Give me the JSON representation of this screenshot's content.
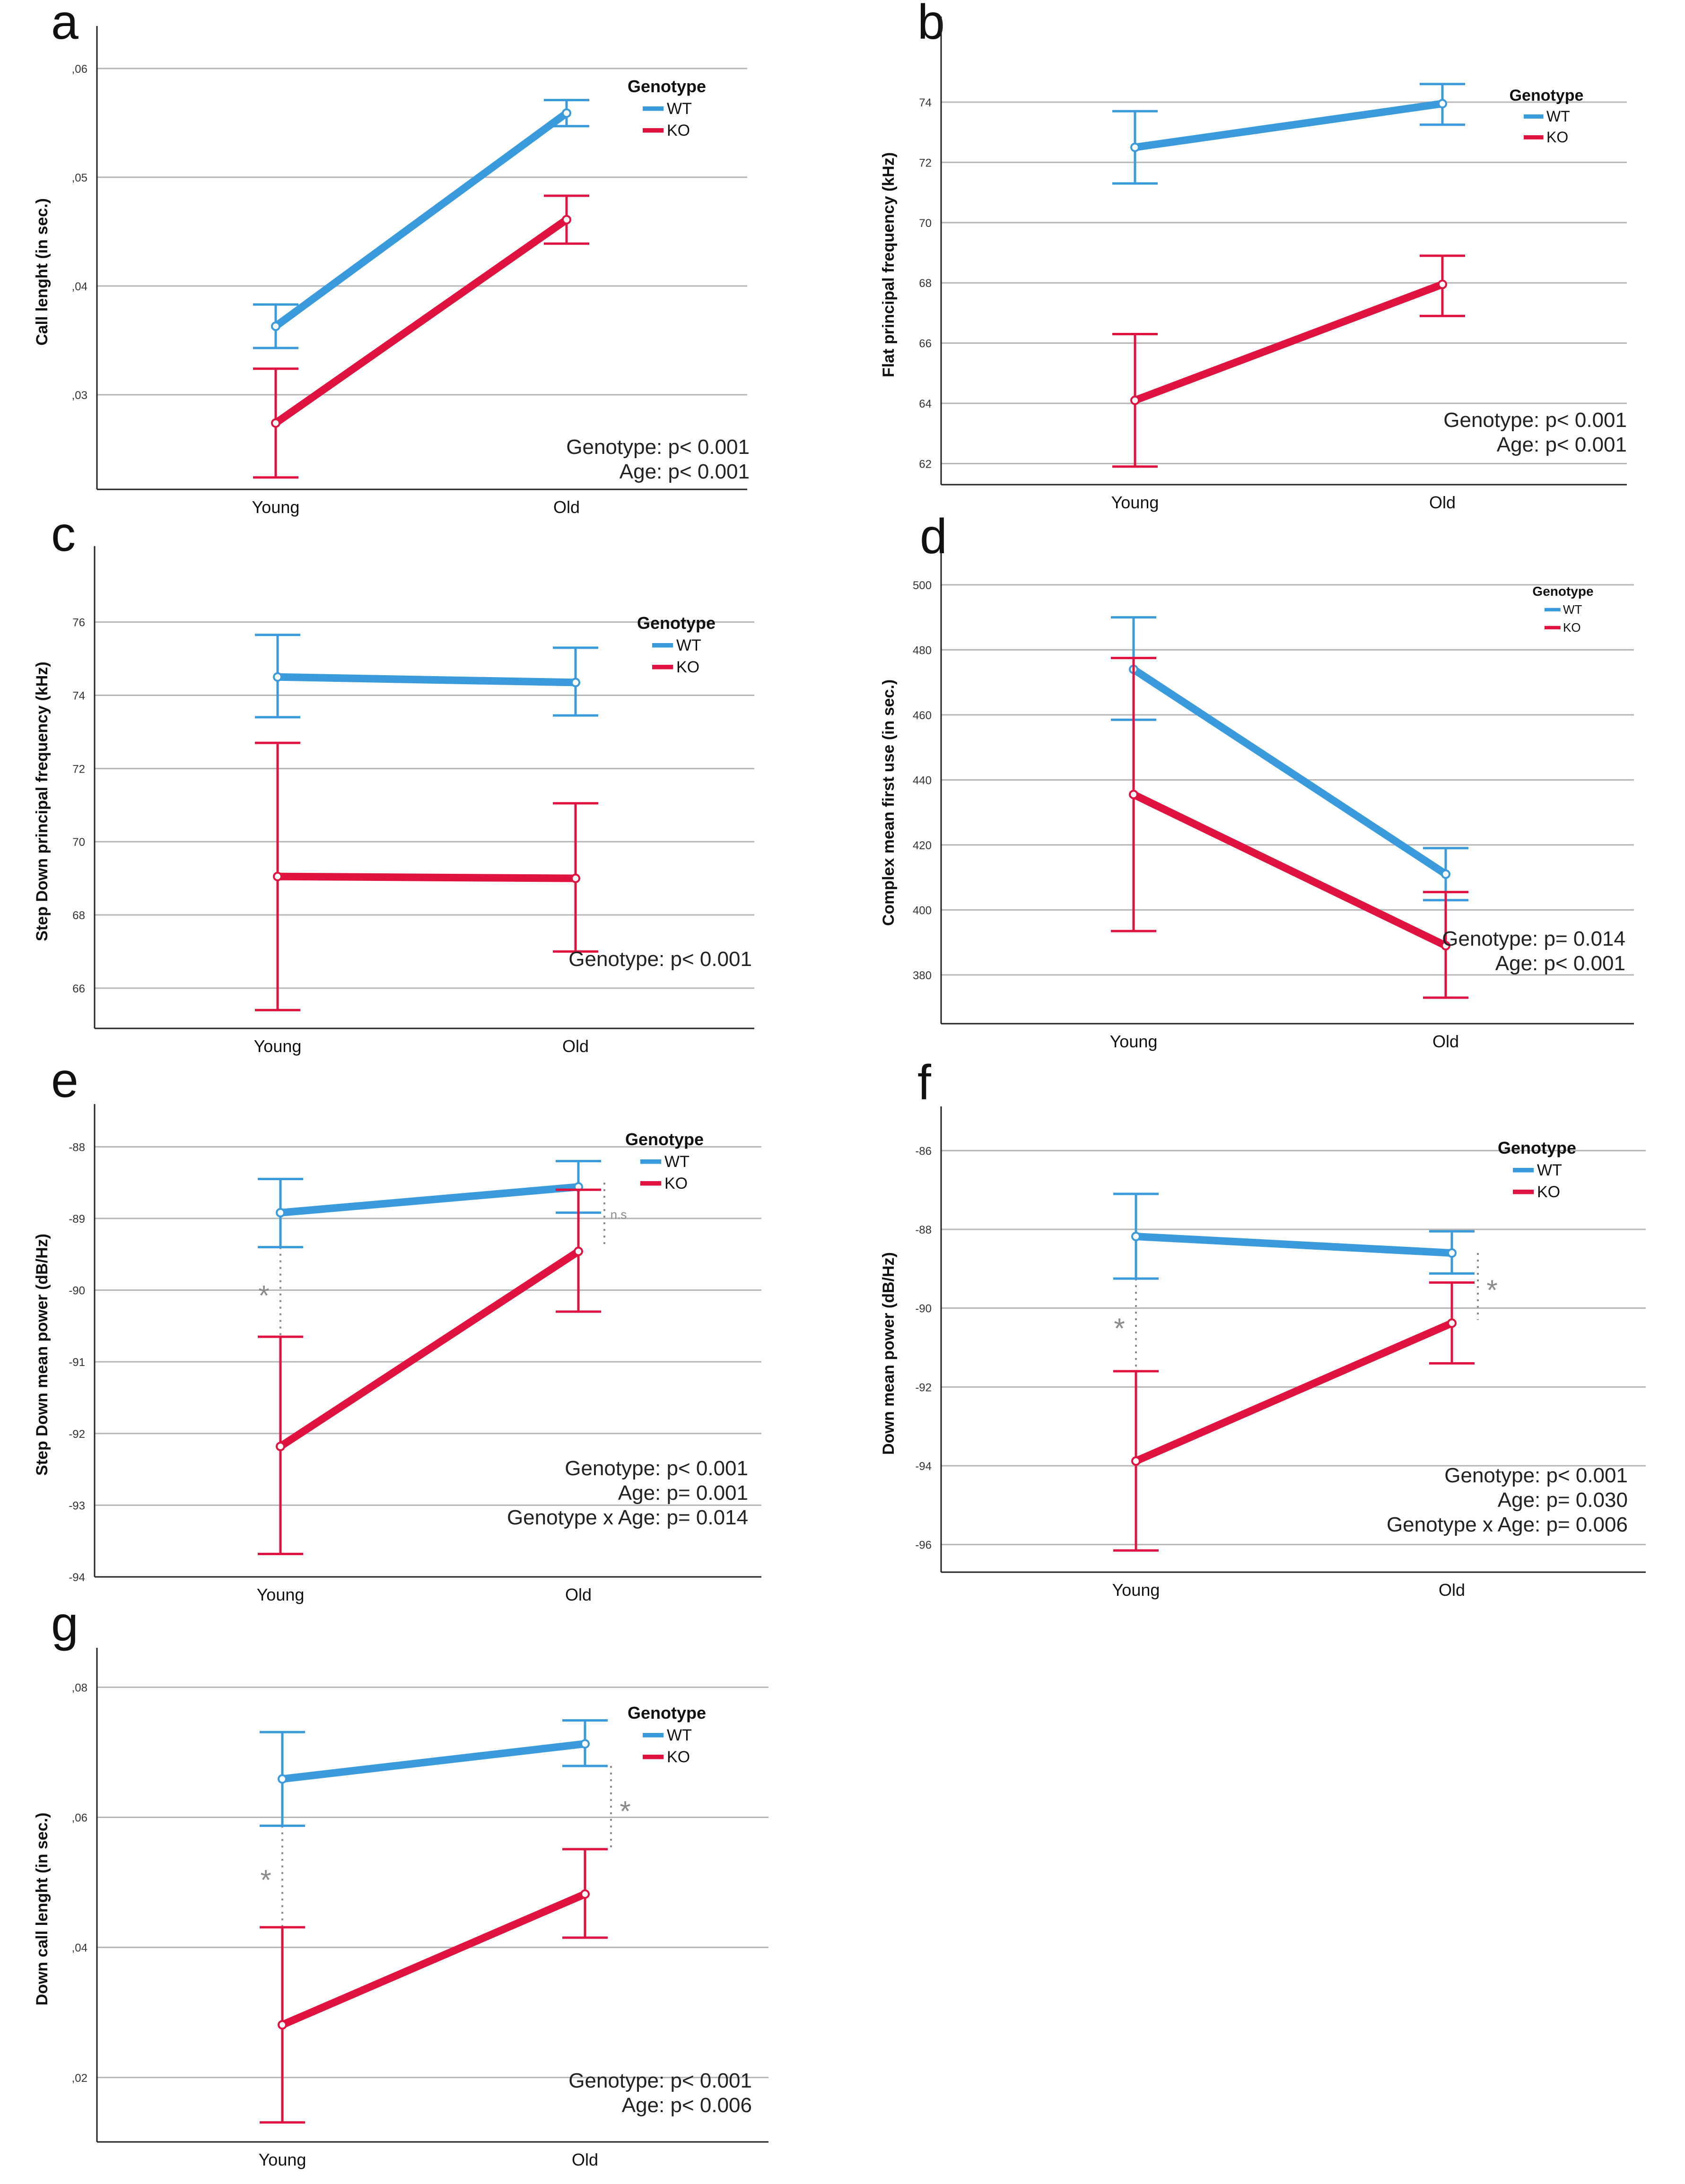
{
  "figure": {
    "colors": {
      "wt": "#3a9bdc",
      "ko": "#e0123f",
      "grid": "#b5b5b5",
      "axis": "#222222",
      "annotation": "#8a8a8a"
    },
    "legend_title": "Genotype"
  },
  "chart_data": [
    {
      "panel": "a",
      "type": "line",
      "categories": [
        "Young",
        "Old"
      ],
      "ylabel": "Call lenght (in sec.)",
      "ylim": [
        0.0213,
        0.0613
      ],
      "yticks": [
        0.03,
        0.04,
        0.05,
        0.06
      ],
      "ytick_labels": [
        ",03",
        ",04",
        ",05",
        ",06"
      ],
      "legend_position": "top-right",
      "series": [
        {
          "name": "WT",
          "values": [
            0.0363,
            0.0559
          ],
          "err_low": [
            0.0343,
            0.0547
          ],
          "err_high": [
            0.0383,
            0.0571
          ]
        },
        {
          "name": "KO",
          "values": [
            0.0274,
            0.0461
          ],
          "err_low": [
            0.0224,
            0.0439
          ],
          "err_high": [
            0.0324,
            0.0483
          ]
        }
      ],
      "stats": [
        "Genotype: p< 0.001",
        "Age: p< 0.001"
      ],
      "annotations": []
    },
    {
      "panel": "b",
      "type": "line",
      "categories": [
        "Young",
        "Old"
      ],
      "ylabel": "Flat principal frequency (kHz)",
      "ylim": [
        61.3,
        75.9
      ],
      "yticks": [
        62,
        64,
        66,
        68,
        70,
        72,
        74
      ],
      "ytick_labels": [
        "62",
        "64",
        "66",
        "68",
        "70",
        "72",
        "74"
      ],
      "legend_position": "top-right",
      "series": [
        {
          "name": "WT",
          "values": [
            72.5,
            73.95
          ],
          "err_low": [
            71.3,
            73.25
          ],
          "err_high": [
            73.7,
            74.6
          ]
        },
        {
          "name": "KO",
          "values": [
            64.1,
            67.95
          ],
          "err_low": [
            61.9,
            66.9
          ],
          "err_high": [
            66.3,
            68.9
          ]
        }
      ],
      "stats": [
        "Genotype: p< 0.001",
        "Age: p< 0.001"
      ],
      "annotations": []
    },
    {
      "panel": "c",
      "type": "line",
      "categories": [
        "Young",
        "Old"
      ],
      "ylabel": "Step Down principal frequency (kHz)",
      "ylim": [
        64.9,
        77.3
      ],
      "yticks": [
        66,
        68,
        70,
        72,
        74,
        76
      ],
      "ytick_labels": [
        "66",
        "68",
        "70",
        "72",
        "74",
        "76"
      ],
      "legend_position": "top-right",
      "series": [
        {
          "name": "WT",
          "values": [
            74.5,
            74.35
          ],
          "err_low": [
            73.4,
            73.45
          ],
          "err_high": [
            75.65,
            75.3
          ]
        },
        {
          "name": "KO",
          "values": [
            69.05,
            69.0
          ],
          "err_low": [
            65.4,
            67.0
          ],
          "err_high": [
            72.7,
            71.05
          ]
        }
      ],
      "stats": [
        "Genotype: p< 0.001"
      ],
      "annotations": []
    },
    {
      "panel": "d",
      "type": "line",
      "categories": [
        "Young",
        "Old"
      ],
      "ylabel": "Complex mean first use (in sec.)",
      "ylim": [
        365,
        501
      ],
      "yticks": [
        380,
        400,
        420,
        440,
        460,
        480,
        500
      ],
      "ytick_labels": [
        "380",
        "400",
        "420",
        "440",
        "460",
        "480",
        "500"
      ],
      "legend_position": "top-right",
      "series": [
        {
          "name": "WT",
          "values": [
            474,
            411
          ],
          "err_low": [
            458.5,
            403
          ],
          "err_high": [
            490,
            419
          ]
        },
        {
          "name": "KO",
          "values": [
            435.5,
            389
          ],
          "err_low": [
            393.5,
            373
          ],
          "err_high": [
            477.5,
            405.5
          ]
        }
      ],
      "stats": [
        "Genotype: p= 0.014",
        "Age: p< 0.001"
      ],
      "annotations": []
    },
    {
      "panel": "e",
      "type": "line",
      "categories": [
        "Young",
        "Old"
      ],
      "ylabel": "Step Down mean power (dB/Hz)",
      "ylim": [
        -94,
        -87.8
      ],
      "yticks": [
        -94,
        -93,
        -92,
        -91,
        -90,
        -89,
        -88
      ],
      "ytick_labels": [
        "-94",
        "-93",
        "-92",
        "-91",
        "-90",
        "-89",
        "-88"
      ],
      "legend_position": "top-right",
      "series": [
        {
          "name": "WT",
          "values": [
            -88.92,
            -88.56
          ],
          "err_low": [
            -89.4,
            -88.92
          ],
          "err_high": [
            -88.45,
            -88.2
          ]
        },
        {
          "name": "KO",
          "values": [
            -92.18,
            -89.46
          ],
          "err_low": [
            -93.68,
            -90.3
          ],
          "err_high": [
            -90.65,
            -88.6
          ]
        }
      ],
      "stats": [
        "Genotype: p< 0.001",
        "Age: p= 0.001",
        "Genotype x Age: p= 0.014"
      ],
      "annotations": [
        {
          "category": "Young",
          "label": "*",
          "from": -89.4,
          "to": -90.65
        },
        {
          "category": "Old",
          "label": "n.s",
          "from": -88.5,
          "to": -89.4
        }
      ]
    },
    {
      "panel": "f",
      "type": "line",
      "categories": [
        "Young",
        "Old"
      ],
      "ylabel": "Down mean power (dB/Hz)",
      "ylim": [
        -96.7,
        -85.6
      ],
      "yticks": [
        -96,
        -94,
        -92,
        -90,
        -88,
        -86
      ],
      "ytick_labels": [
        "-96",
        "-94",
        "-92",
        "-90",
        "-88",
        "-86"
      ],
      "legend_position": "top-right",
      "series": [
        {
          "name": "WT",
          "values": [
            -88.18,
            -88.6
          ],
          "err_low": [
            -89.25,
            -89.12
          ],
          "err_high": [
            -87.1,
            -88.05
          ]
        },
        {
          "name": "KO",
          "values": [
            -93.88,
            -90.38
          ],
          "err_low": [
            -96.15,
            -91.4
          ],
          "err_high": [
            -91.6,
            -89.35
          ]
        }
      ],
      "stats": [
        "Genotype: p< 0.001",
        "Age: p= 0.030",
        "Genotype x Age: p= 0.006"
      ],
      "annotations": [
        {
          "category": "Young",
          "label": "*",
          "from": -89.25,
          "to": -91.6
        },
        {
          "category": "Old",
          "label": "*",
          "from": -88.6,
          "to": -90.3
        }
      ]
    },
    {
      "panel": "g",
      "type": "line",
      "categories": [
        "Young",
        "Old"
      ],
      "ylabel": "Down call lenght (in sec.)",
      "ylim": [
        0.0101,
        0.0817
      ],
      "yticks": [
        0.02,
        0.04,
        0.06,
        0.08
      ],
      "ytick_labels": [
        ",02",
        ",04",
        ",06",
        ",08"
      ],
      "legend_position": "top-right",
      "series": [
        {
          "name": "WT",
          "values": [
            0.0659,
            0.0713
          ],
          "err_low": [
            0.0587,
            0.0679
          ],
          "err_high": [
            0.0731,
            0.0749
          ]
        },
        {
          "name": "KO",
          "values": [
            0.0281,
            0.0482
          ],
          "err_low": [
            0.0131,
            0.0415
          ],
          "err_high": [
            0.0431,
            0.0551
          ]
        }
      ],
      "stats": [
        "Genotype: p< 0.001",
        "Age: p< 0.006"
      ],
      "annotations": [
        {
          "category": "Young",
          "label": "*",
          "from": 0.0587,
          "to": 0.0431
        },
        {
          "category": "Old",
          "label": "*",
          "from": 0.0679,
          "to": 0.0551
        }
      ]
    }
  ]
}
